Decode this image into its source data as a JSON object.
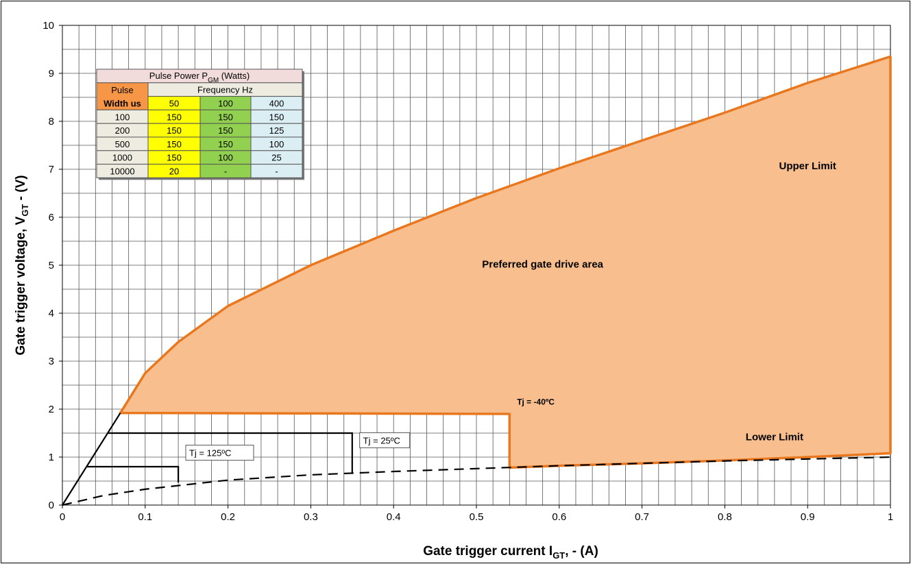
{
  "chart_data": {
    "type": "area",
    "xlabel": {
      "main": "Gate trigger current I",
      "sub": "GT",
      "suffix": ", - (A)"
    },
    "ylabel": {
      "main": "Gate trigger voltage, V",
      "sub": "GT",
      "suffix": " - (V)"
    },
    "xlim": [
      0,
      1
    ],
    "ylim": [
      0,
      10
    ],
    "x_ticks": [
      "0",
      "0.1",
      "0.2",
      "0.3",
      "0.4",
      "0.5",
      "0.6",
      "0.7",
      "0.8",
      "0.9",
      "1"
    ],
    "y_ticks": [
      "0",
      "1",
      "2",
      "3",
      "4",
      "5",
      "6",
      "7",
      "8",
      "9",
      "10"
    ],
    "grid": true,
    "colors": {
      "area_fill": "#f9be8e",
      "area_stroke": "#e8771e",
      "lines": "#000000"
    },
    "area": {
      "upper_boundary": [
        [
          0.07,
          1.92
        ],
        [
          0.1,
          2.75
        ],
        [
          0.14,
          3.4
        ],
        [
          0.2,
          4.15
        ],
        [
          0.3,
          5.0
        ],
        [
          0.4,
          5.72
        ],
        [
          0.5,
          6.4
        ],
        [
          0.6,
          7.02
        ],
        [
          0.7,
          7.6
        ],
        [
          0.8,
          8.18
        ],
        [
          0.9,
          8.8
        ],
        [
          1.0,
          9.35
        ]
      ],
      "lower_boundary": [
        [
          1.0,
          1.08
        ],
        [
          0.9,
          1.0
        ],
        [
          0.8,
          0.93
        ],
        [
          0.7,
          0.87
        ],
        [
          0.6,
          0.82
        ],
        [
          0.54,
          0.78
        ],
        [
          0.54,
          1.9
        ],
        [
          0.07,
          1.92
        ]
      ]
    },
    "lines": [
      {
        "style": "solid",
        "points": [
          [
            0.0,
            0.0
          ],
          [
            0.07,
            1.92
          ]
        ]
      },
      {
        "style": "solid",
        "points": [
          [
            0.03,
            0.8
          ],
          [
            0.14,
            0.8
          ],
          [
            0.14,
            0.47
          ]
        ]
      },
      {
        "style": "solid",
        "points": [
          [
            0.055,
            1.5
          ],
          [
            0.35,
            1.5
          ],
          [
            0.35,
            0.65
          ]
        ]
      },
      {
        "style": "dashed",
        "points": [
          [
            0.0,
            0.0
          ],
          [
            0.05,
            0.2
          ],
          [
            0.1,
            0.33
          ],
          [
            0.2,
            0.52
          ],
          [
            0.3,
            0.63
          ],
          [
            0.4,
            0.7
          ],
          [
            0.5,
            0.76
          ],
          [
            0.6,
            0.82
          ],
          [
            0.7,
            0.87
          ],
          [
            0.8,
            0.92
          ],
          [
            0.9,
            0.96
          ],
          [
            1.0,
            1.0
          ]
        ]
      }
    ],
    "annotations": [
      {
        "text": "Upper Limit",
        "x": 0.9,
        "y": 7.0
      },
      {
        "text": "Preferred gate drive area",
        "x": 0.58,
        "y": 4.95
      },
      {
        "text": "Lower Limit",
        "x": 0.86,
        "y": 1.35
      },
      {
        "text": "Tj = -40ºC",
        "x": 0.549,
        "y": 2.09
      },
      {
        "text": "Tj = 125ºC",
        "x": 0.149,
        "y": 1.02
      },
      {
        "text": "Tj = 25ºC",
        "x": 0.359,
        "y": 1.28
      }
    ],
    "table": {
      "title": {
        "main": "Pulse Power P",
        "sub": "GM",
        "suffix": " (Watts)"
      },
      "pulse_header": [
        "Pulse",
        "Width us"
      ],
      "freq_header": "Frequency Hz",
      "frequencies": [
        "50",
        "100",
        "400"
      ],
      "rows": [
        {
          "width": "100",
          "values": [
            "150",
            "150",
            "150"
          ]
        },
        {
          "width": "200",
          "values": [
            "150",
            "150",
            "125"
          ]
        },
        {
          "width": "500",
          "values": [
            "150",
            "150",
            "100"
          ]
        },
        {
          "width": "1000",
          "values": [
            "150",
            "100",
            "25"
          ]
        },
        {
          "width": "10000",
          "values": [
            "20",
            "-",
            "-"
          ]
        }
      ],
      "colors": {
        "title_bg": "#f2dcdb",
        "header_bg": "#eeece1",
        "pulse_bg": "#f79646",
        "col1_bg": "#ffff00",
        "col2_bg": "#92d050",
        "col3_bg": "#dbeef4"
      }
    }
  }
}
